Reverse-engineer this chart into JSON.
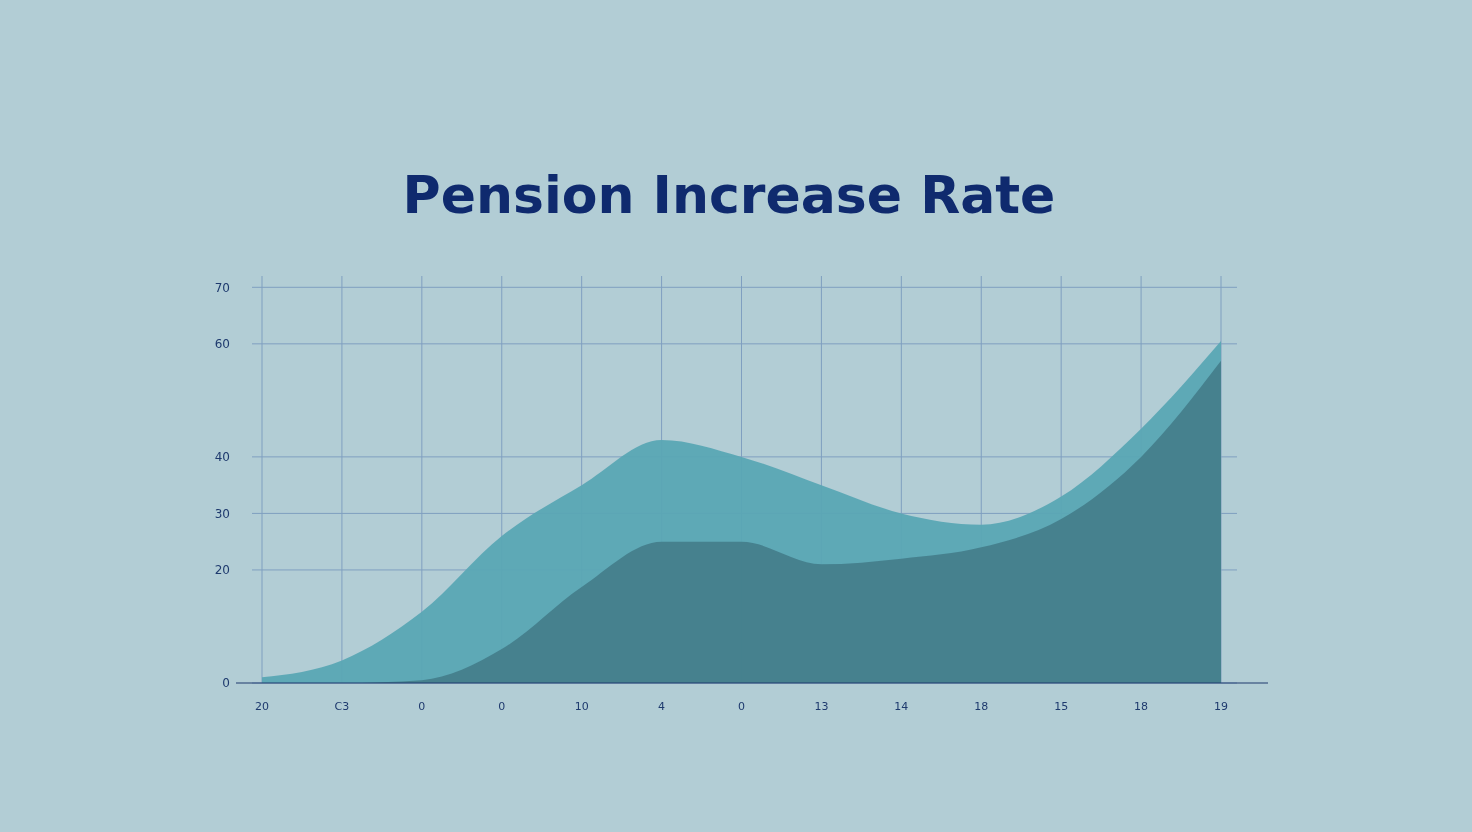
{
  "chart_data": {
    "type": "area",
    "title": "Pension Increase Rate",
    "categories": [
      "20",
      "C3",
      "0",
      "0",
      "10",
      "4",
      "0",
      "13",
      "14",
      "18",
      "15",
      "18",
      "19"
    ],
    "series": [
      {
        "color": "#5aa6b4",
        "values": [
          1,
          4,
          12.6,
          26,
          35,
          43,
          40,
          35,
          30,
          28,
          33,
          45,
          60.5
        ]
      },
      {
        "color": "#457e8c",
        "values": [
          0,
          0,
          0.5,
          6,
          17,
          25,
          25,
          21,
          22,
          24,
          29,
          40,
          57
        ]
      }
    ],
    "ylim": [
      0,
      72
    ],
    "yticks": [
      0,
      20,
      30,
      40,
      60,
      70
    ],
    "grid": true
  }
}
